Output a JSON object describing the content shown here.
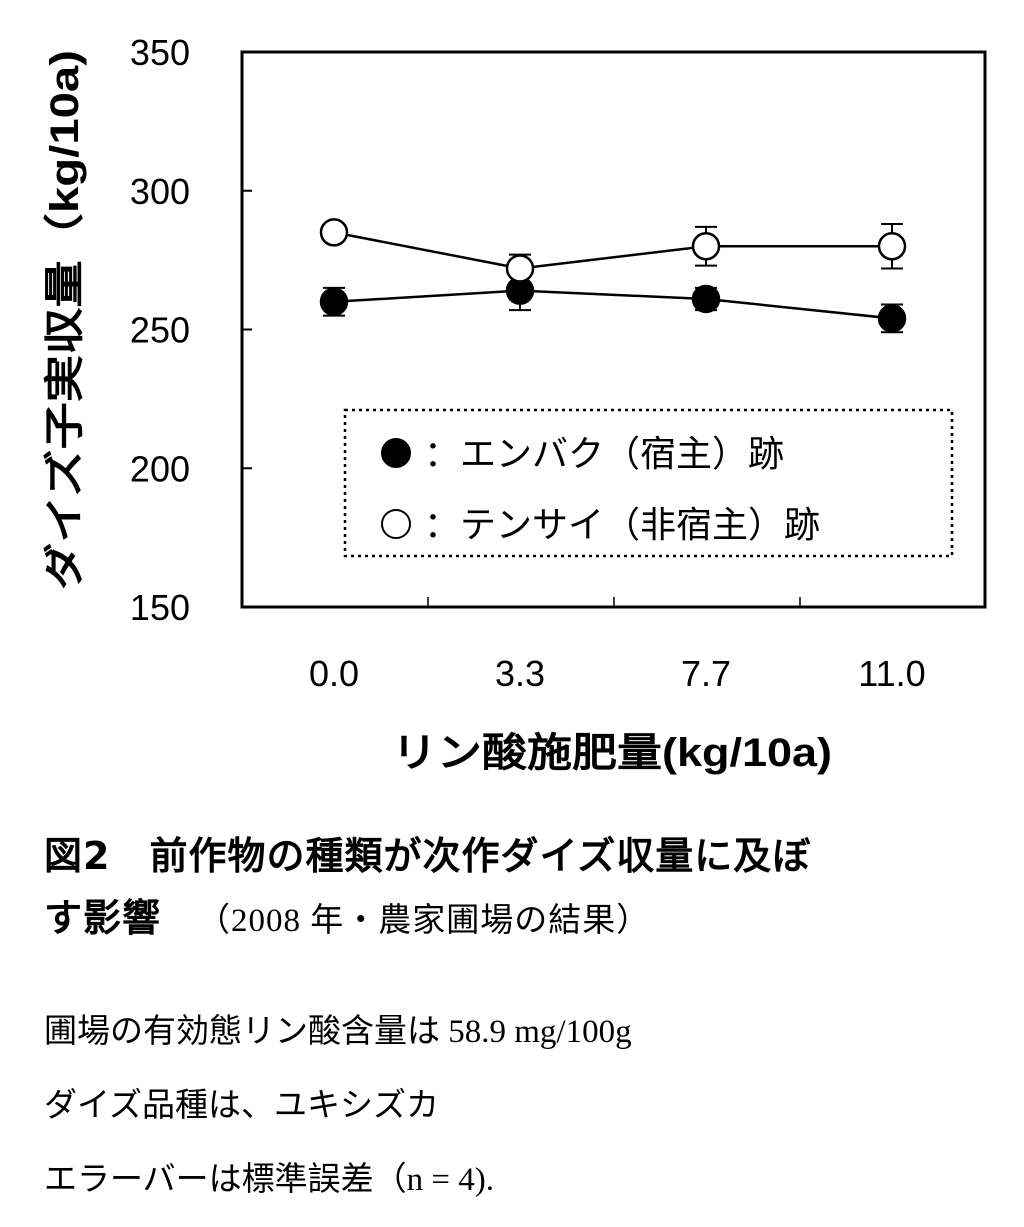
{
  "chart_data": {
    "type": "line",
    "categories": [
      "0.0",
      "3.3",
      "7.7",
      "11.0"
    ],
    "xlabel": "リン酸施肥量(kg/10a)",
    "ylabel": "ダイズ子実収量（kg/10a)",
    "ylim": [
      150,
      350
    ],
    "yticks": [
      "350",
      "300",
      "250",
      "200",
      "150"
    ],
    "grid": false,
    "legend_position": "lower-right inside plot",
    "series": [
      {
        "name": "：エンバク（宿主）跡",
        "marker": "filled-circle",
        "color": "#000000",
        "values": [
          260,
          264,
          261,
          254
        ],
        "error": [
          5,
          7,
          4,
          5
        ]
      },
      {
        "name": "：テンサイ（非宿主）跡",
        "marker": "open-circle",
        "color": "#000000",
        "values": [
          285,
          272,
          280,
          280
        ],
        "error": [
          3,
          5,
          7,
          8
        ]
      }
    ]
  },
  "caption": {
    "title_line1": "図2　前作物の種類が次作ダイズ収量に及ぼ",
    "title_line2": "す影響",
    "note": "（2008 年・農家圃場の結果）"
  },
  "notes": [
    "圃場の有効態リン酸含量は 58.9 mg/100g",
    "ダイズ品種は、ユキシズカ",
    "エラーバーは標準誤差（n = 4)."
  ]
}
